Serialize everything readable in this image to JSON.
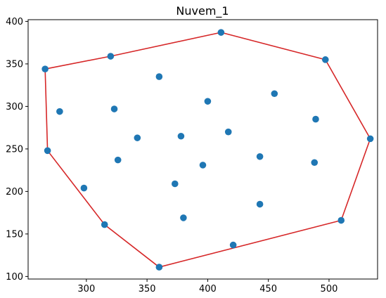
{
  "chart_data": {
    "type": "scatter",
    "title": "Nuvem_1",
    "xlabel": "",
    "ylabel": "",
    "xlim": [
      252,
      540
    ],
    "ylim": [
      97,
      402
    ],
    "xticks": [
      300,
      350,
      400,
      450,
      500
    ],
    "yticks": [
      100,
      150,
      200,
      250,
      300,
      350,
      400
    ],
    "grid": false,
    "point_color": "#1f77b4",
    "hull_color": "#d62728",
    "points": [
      {
        "x": 266,
        "y": 344
      },
      {
        "x": 268,
        "y": 248
      },
      {
        "x": 278,
        "y": 294
      },
      {
        "x": 298,
        "y": 204
      },
      {
        "x": 315,
        "y": 161
      },
      {
        "x": 320,
        "y": 359
      },
      {
        "x": 323,
        "y": 297
      },
      {
        "x": 326,
        "y": 237
      },
      {
        "x": 342,
        "y": 263
      },
      {
        "x": 360,
        "y": 335
      },
      {
        "x": 360,
        "y": 111
      },
      {
        "x": 373,
        "y": 209
      },
      {
        "x": 378,
        "y": 265
      },
      {
        "x": 380,
        "y": 169
      },
      {
        "x": 396,
        "y": 231
      },
      {
        "x": 400,
        "y": 306
      },
      {
        "x": 411,
        "y": 387
      },
      {
        "x": 417,
        "y": 270
      },
      {
        "x": 421,
        "y": 137
      },
      {
        "x": 443,
        "y": 241
      },
      {
        "x": 443,
        "y": 185
      },
      {
        "x": 455,
        "y": 315
      },
      {
        "x": 488,
        "y": 234
      },
      {
        "x": 489,
        "y": 285
      },
      {
        "x": 497,
        "y": 355
      },
      {
        "x": 510,
        "y": 166
      },
      {
        "x": 534,
        "y": 262
      }
    ],
    "hull": [
      {
        "x": 266,
        "y": 344
      },
      {
        "x": 320,
        "y": 359
      },
      {
        "x": 411,
        "y": 387
      },
      {
        "x": 497,
        "y": 355
      },
      {
        "x": 534,
        "y": 262
      },
      {
        "x": 510,
        "y": 166
      },
      {
        "x": 360,
        "y": 111
      },
      {
        "x": 315,
        "y": 161
      },
      {
        "x": 268,
        "y": 248
      },
      {
        "x": 266,
        "y": 344
      }
    ]
  }
}
